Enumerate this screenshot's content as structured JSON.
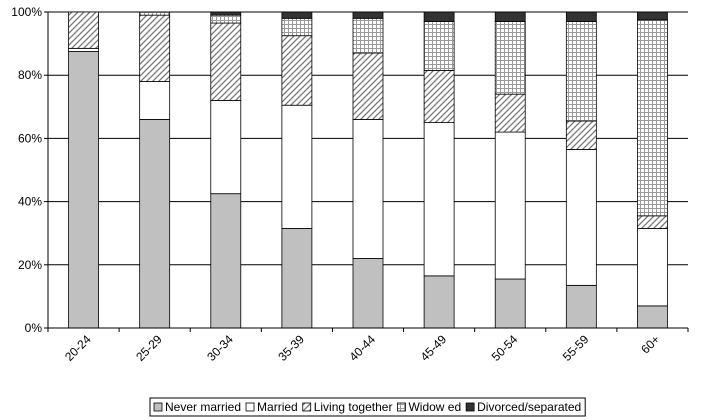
{
  "chart_data": {
    "type": "bar",
    "stacked": true,
    "percent": true,
    "categories": [
      "20-24",
      "25-29",
      "30-34",
      "35-39",
      "40-44",
      "45-49",
      "50-54",
      "55-59",
      "60+"
    ],
    "series": [
      {
        "name": "Never married",
        "pattern": "solid",
        "color": "#c0c0c0",
        "values": [
          87.5,
          66.0,
          42.5,
          31.5,
          22.0,
          16.5,
          15.5,
          13.5,
          7.0
        ]
      },
      {
        "name": "Married",
        "pattern": "solid",
        "color": "#ffffff",
        "values": [
          1.0,
          12.0,
          29.5,
          39.0,
          44.0,
          48.5,
          46.5,
          43.0,
          24.5
        ]
      },
      {
        "name": "Living together",
        "pattern": "diagonal-hatch",
        "color": "#ffffff",
        "values": [
          11.5,
          21.0,
          24.5,
          22.0,
          21.0,
          16.5,
          12.0,
          9.0,
          4.0
        ]
      },
      {
        "name": "Widow ed",
        "pattern": "grid",
        "color": "#ffffff",
        "values": [
          0.0,
          1.0,
          2.5,
          5.5,
          11.0,
          15.5,
          23.0,
          31.5,
          62.0
        ]
      },
      {
        "name": "Divorced/separated",
        "pattern": "solid",
        "color": "#333333",
        "values": [
          0.0,
          0.0,
          1.0,
          2.0,
          2.0,
          3.0,
          3.0,
          3.0,
          2.5
        ]
      }
    ],
    "y_ticks": [
      "0%",
      "20%",
      "40%",
      "60%",
      "80%",
      "100%"
    ],
    "ylim": [
      0,
      100
    ],
    "grid": "horizontal",
    "legend_position": "bottom",
    "title": "",
    "xlabel": "",
    "ylabel": ""
  }
}
